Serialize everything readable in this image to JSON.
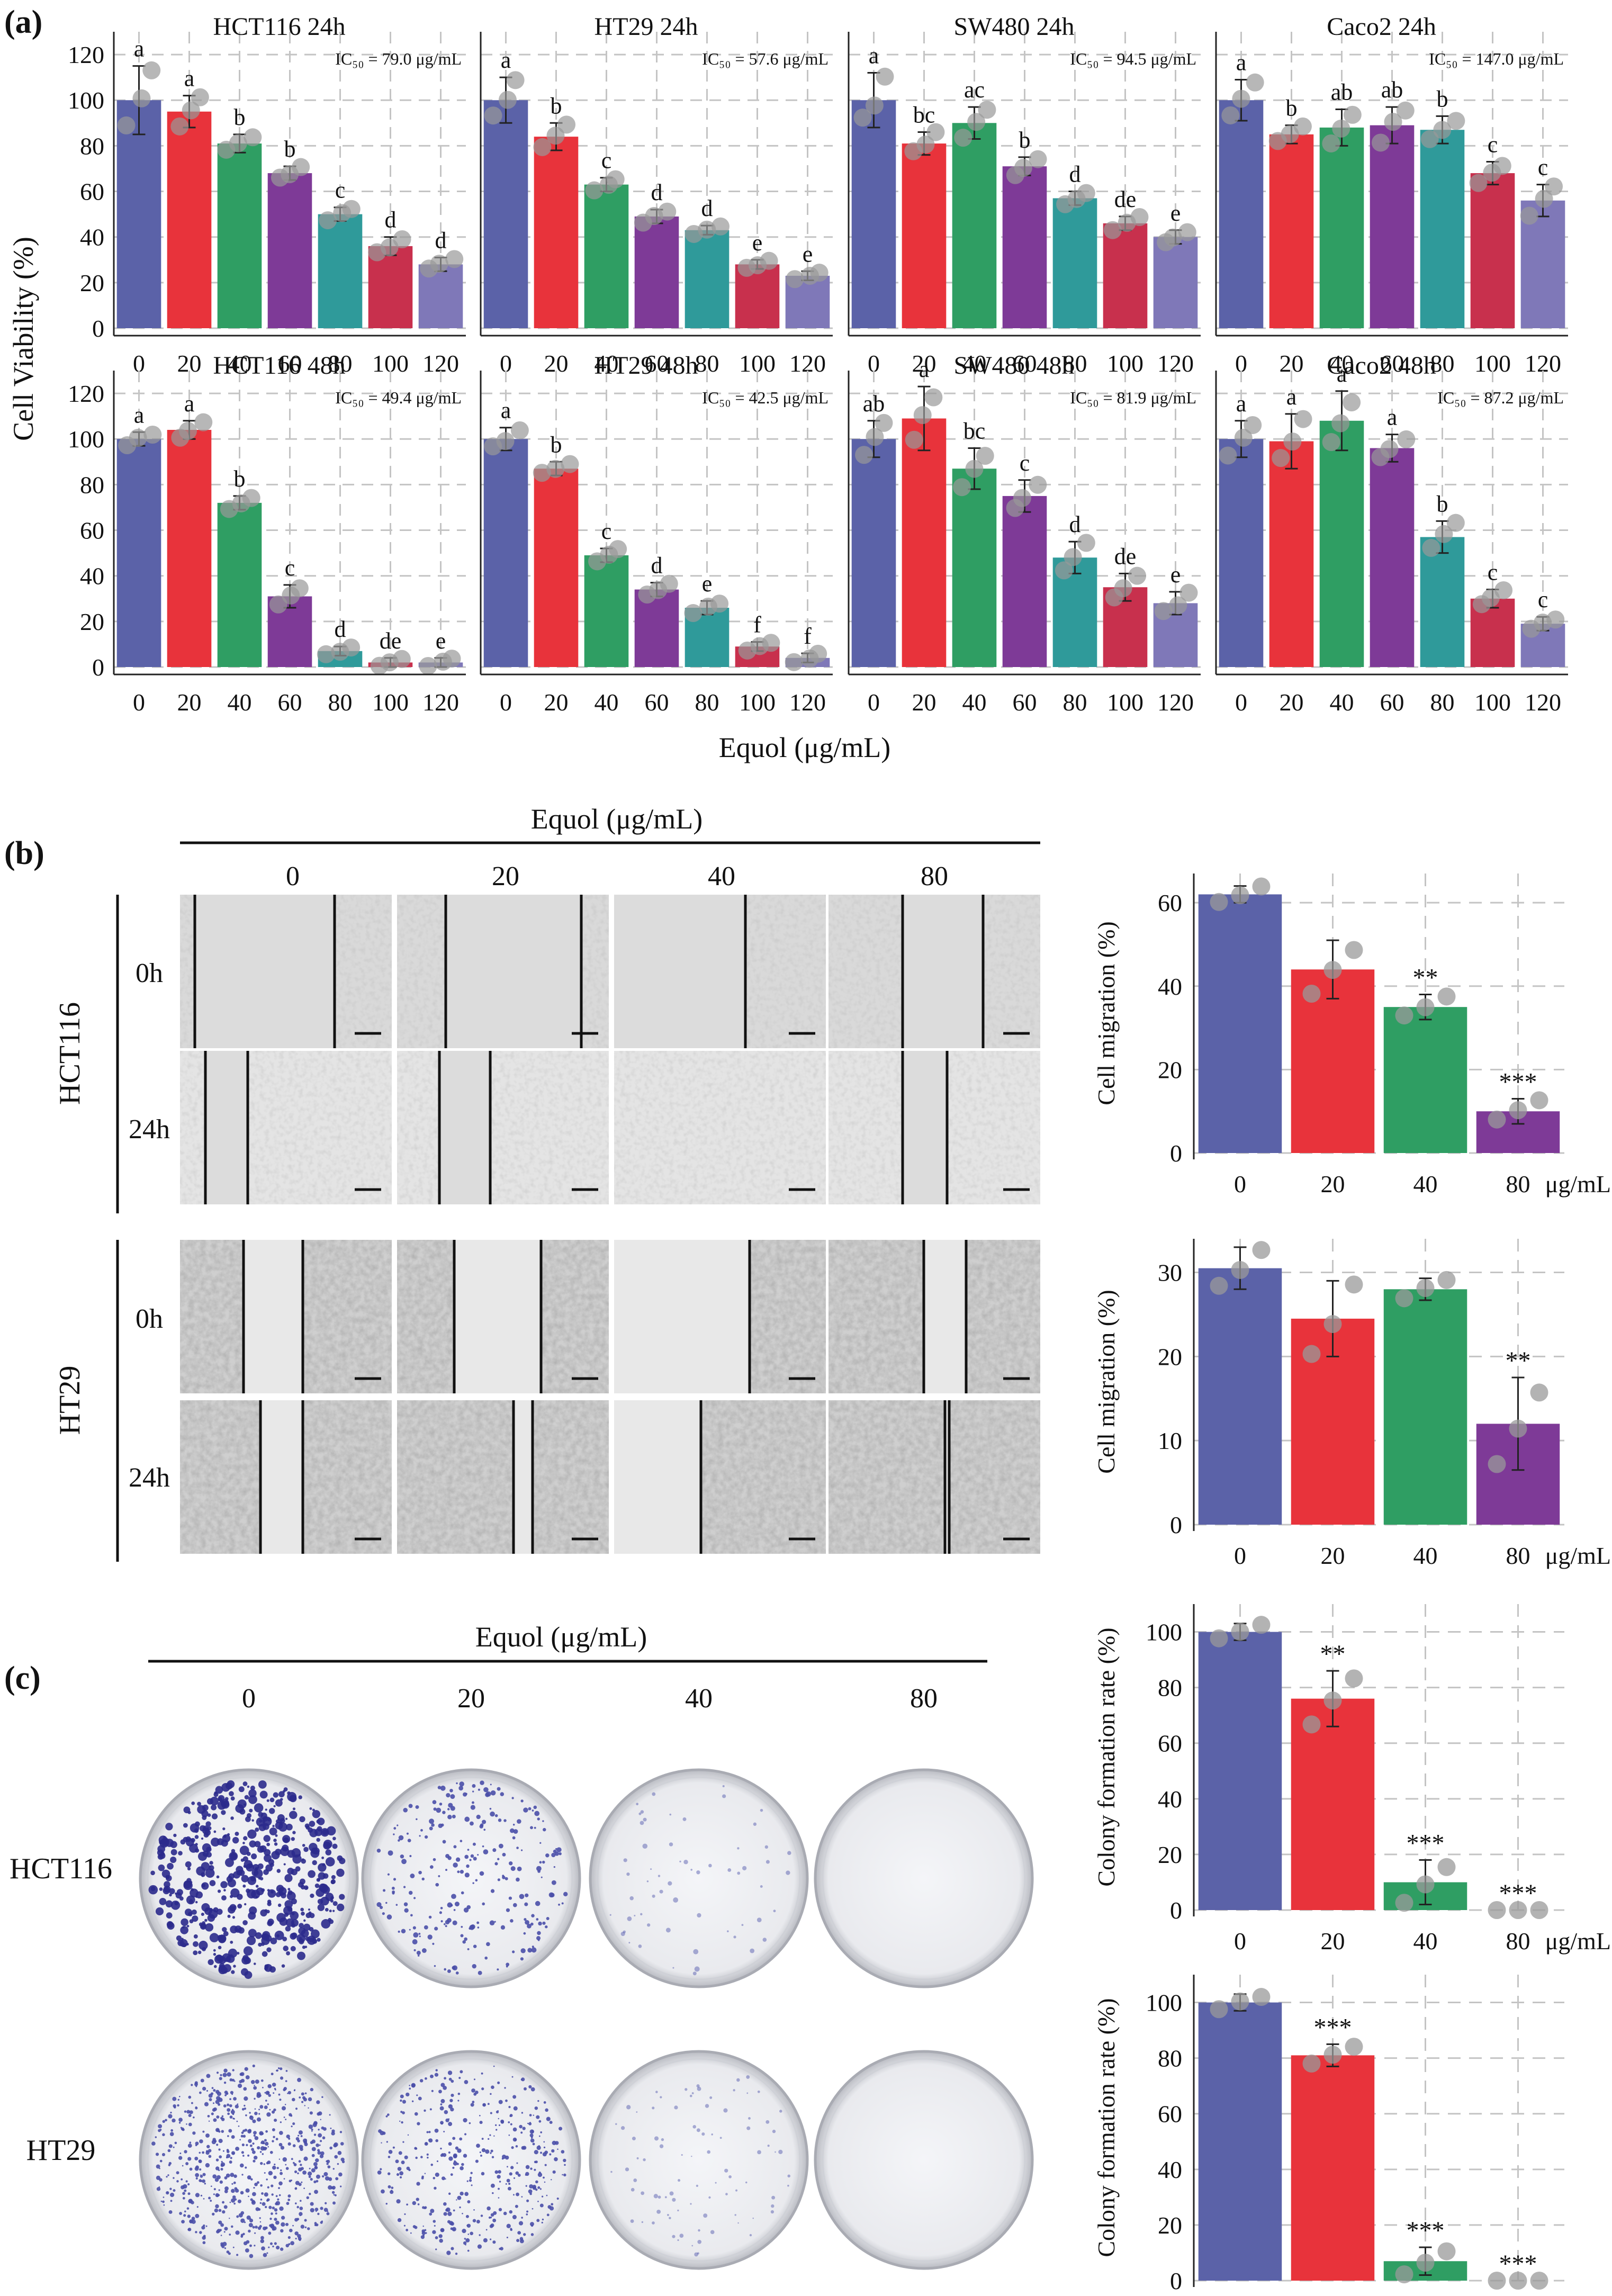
{
  "colors": {
    "c0": "#5b62a8",
    "c20": "#e8333b",
    "c40": "#2f9e63",
    "c60": "#7e3a97",
    "c80": "#2f9a9a",
    "c100": "#c8304d",
    "c120": "#7f78b8",
    "grid": "#c4c4c4",
    "dot": "#999999"
  },
  "panel_a": {
    "label": "(a)",
    "ylabel": "Cell Viability (%)",
    "xlabel": "Equol (μg/mL)",
    "yticks": [
      "0",
      "20",
      "40",
      "60",
      "80",
      "100",
      "120"
    ],
    "categories": [
      "0",
      "20",
      "40",
      "60",
      "80",
      "100",
      "120"
    ]
  },
  "panel_b": {
    "label": "(b)",
    "header": "Equol (μg/mL)",
    "concentrations": [
      "0",
      "20",
      "40",
      "80"
    ],
    "rows": [
      {
        "cell": "HCT116",
        "times": [
          "0h",
          "24h"
        ]
      },
      {
        "cell": "HT29",
        "times": [
          "0h",
          "24h"
        ]
      }
    ]
  },
  "panel_c": {
    "label": "(c)",
    "header": "Equol (μg/mL)",
    "concentrations": [
      "0",
      "20",
      "40",
      "80"
    ],
    "cells": [
      "HCT116",
      "HT29"
    ]
  },
  "chart_data": [
    {
      "type": "bar",
      "title": "HCT116 24h",
      "ic50": "IC₅₀ = 79.0 μg/mL",
      "categories": [
        "0",
        "20",
        "40",
        "60",
        "80",
        "100",
        "120"
      ],
      "values": [
        100,
        95,
        81,
        68,
        50,
        36,
        28
      ],
      "errors": [
        15,
        7,
        4,
        3,
        3,
        4,
        3
      ],
      "letters": [
        "a",
        "a",
        "b",
        "b",
        "c",
        "d",
        "d"
      ],
      "ylim": [
        0,
        130
      ]
    },
    {
      "type": "bar",
      "title": "HT29 24h",
      "ic50": "IC₅₀ = 57.6 μg/mL",
      "categories": [
        "0",
        "20",
        "40",
        "60",
        "80",
        "100",
        "120"
      ],
      "values": [
        100,
        84,
        63,
        49,
        43,
        28,
        23
      ],
      "errors": [
        10,
        6,
        3,
        3,
        2,
        2,
        2
      ],
      "letters": [
        "a",
        "b",
        "c",
        "d",
        "d",
        "e",
        "e"
      ],
      "ylim": [
        0,
        130
      ]
    },
    {
      "type": "bar",
      "title": "SW480 24h",
      "ic50": "IC₅₀ = 94.5 μg/mL",
      "categories": [
        "0",
        "20",
        "40",
        "60",
        "80",
        "100",
        "120"
      ],
      "values": [
        100,
        81,
        90,
        71,
        57,
        46,
        40
      ],
      "errors": [
        12,
        5,
        7,
        4,
        3,
        3,
        3
      ],
      "letters": [
        "a",
        "bc",
        "ac",
        "b",
        "d",
        "de",
        "e"
      ],
      "ylim": [
        0,
        130
      ]
    },
    {
      "type": "bar",
      "title": "Caco2 24h",
      "ic50": "IC₅₀ = 147.0 μg/mL",
      "categories": [
        "0",
        "20",
        "40",
        "60",
        "80",
        "100",
        "120"
      ],
      "values": [
        100,
        85,
        88,
        89,
        87,
        68,
        56
      ],
      "errors": [
        9,
        4,
        8,
        8,
        6,
        5,
        7
      ],
      "letters": [
        "a",
        "b",
        "ab",
        "ab",
        "b",
        "c",
        "c"
      ],
      "ylim": [
        0,
        130
      ]
    },
    {
      "type": "bar",
      "title": "HCT116 48h",
      "ic50": "IC₅₀ = 49.4 μg/mL",
      "categories": [
        "0",
        "20",
        "40",
        "60",
        "80",
        "100",
        "120"
      ],
      "values": [
        100,
        104,
        72,
        31,
        7,
        2,
        2
      ],
      "errors": [
        3,
        4,
        3,
        5,
        2,
        2,
        2
      ],
      "letters": [
        "a",
        "a",
        "b",
        "c",
        "d",
        "de",
        "e"
      ],
      "ylim": [
        0,
        130
      ]
    },
    {
      "type": "bar",
      "title": "HT29 48h",
      "ic50": "IC₅₀ = 42.5 μg/mL",
      "categories": [
        "0",
        "20",
        "40",
        "60",
        "80",
        "100",
        "120"
      ],
      "values": [
        100,
        87,
        49,
        34,
        26,
        9,
        4
      ],
      "errors": [
        5,
        3,
        3,
        3,
        3,
        2,
        2
      ],
      "letters": [
        "a",
        "b",
        "c",
        "d",
        "e",
        "f",
        "f"
      ],
      "ylim": [
        0,
        130
      ]
    },
    {
      "type": "bar",
      "title": "SW480 48h",
      "ic50": "IC₅₀ = 81.9 μg/mL",
      "categories": [
        "0",
        "20",
        "40",
        "60",
        "80",
        "100",
        "120"
      ],
      "values": [
        100,
        109,
        87,
        75,
        48,
        35,
        28
      ],
      "errors": [
        8,
        14,
        9,
        7,
        7,
        6,
        5
      ],
      "letters": [
        "ab",
        "a",
        "bc",
        "c",
        "d",
        "de",
        "e"
      ],
      "ylim": [
        0,
        130
      ]
    },
    {
      "type": "bar",
      "title": "Caco2 48h",
      "ic50": "IC₅₀ = 87.2 μg/mL",
      "categories": [
        "0",
        "20",
        "40",
        "60",
        "80",
        "100",
        "120"
      ],
      "values": [
        100,
        99,
        108,
        96,
        57,
        30,
        19
      ],
      "errors": [
        8,
        12,
        13,
        6,
        7,
        4,
        3
      ],
      "letters": [
        "a",
        "a",
        "a",
        "a",
        "b",
        "c",
        "c"
      ],
      "ylim": [
        0,
        130
      ]
    },
    {
      "type": "bar",
      "ylabel": "Cell migration (%)",
      "unit": "μg/mL",
      "categories": [
        "0",
        "20",
        "40",
        "80"
      ],
      "values": [
        62,
        44,
        35,
        10
      ],
      "errors": [
        2,
        7,
        3,
        3
      ],
      "marks": [
        "",
        "",
        "**",
        "***"
      ],
      "yticks": [
        0,
        20,
        40,
        60
      ],
      "ylim": [
        0,
        67
      ]
    },
    {
      "type": "bar",
      "ylabel": "Cell migration (%)",
      "unit": "μg/mL",
      "categories": [
        "0",
        "20",
        "40",
        "80"
      ],
      "values": [
        30.5,
        24.5,
        28,
        12
      ],
      "errors": [
        2.5,
        4.5,
        1.3,
        5.5
      ],
      "marks": [
        "",
        "",
        "",
        "**"
      ],
      "yticks": [
        0,
        10,
        20,
        30
      ],
      "ylim": [
        0,
        34
      ]
    },
    {
      "type": "bar",
      "ylabel": "Colony formation rate (%)",
      "unit": "μg/mL",
      "categories": [
        "0",
        "20",
        "40",
        "80"
      ],
      "values": [
        100,
        76,
        10,
        0
      ],
      "errors": [
        3,
        10,
        8,
        0
      ],
      "marks": [
        "",
        "**",
        "***",
        "***"
      ],
      "yticks": [
        0,
        20,
        40,
        60,
        80,
        100
      ],
      "ylim": [
        0,
        110
      ]
    },
    {
      "type": "bar",
      "ylabel": "Colony formation rate (%)",
      "unit": "μg/mL",
      "categories": [
        "0",
        "20",
        "40",
        "80"
      ],
      "values": [
        100,
        81,
        7,
        0
      ],
      "errors": [
        3,
        4,
        5,
        0
      ],
      "marks": [
        "",
        "***",
        "***",
        "***"
      ],
      "yticks": [
        0,
        20,
        40,
        60,
        80,
        100
      ],
      "ylim": [
        0,
        110
      ]
    }
  ]
}
